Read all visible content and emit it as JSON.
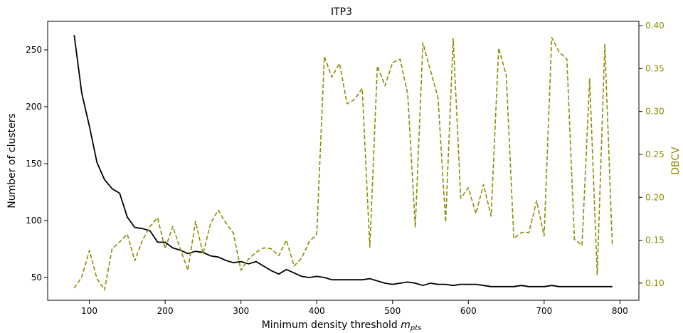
{
  "chart_data": {
    "type": "line",
    "title": "ITP3",
    "xlabel_main": "Minimum density threshold ",
    "xlabel_math": "m",
    "xlabel_sub": "pts",
    "ylabel_left": "Number of clusters",
    "ylabel_right": "DBCV",
    "xlim": [
      45,
      825
    ],
    "ylim_left": [
      30,
      275
    ],
    "ylim_right": [
      0.08,
      0.405
    ],
    "x_ticks": [
      100,
      200,
      300,
      400,
      500,
      600,
      700,
      800
    ],
    "y_left_ticks": [
      50,
      100,
      150,
      200,
      250
    ],
    "y_right_ticks": [
      0.1,
      0.15,
      0.2,
      0.25,
      0.3,
      0.35,
      0.4
    ],
    "y_right_tick_labels": [
      "0.10",
      "0.15",
      "0.20",
      "0.25",
      "0.30",
      "0.35",
      "0.40"
    ],
    "grid": false,
    "colors": {
      "clusters": "#000000",
      "dbcv": "#8c8c00",
      "axes": "#000000"
    },
    "series": [
      {
        "axis": "left",
        "style": "solid",
        "x": [
          80,
          90,
          100,
          110,
          120,
          130,
          140,
          150,
          160,
          170,
          180,
          190,
          200,
          210,
          220,
          230,
          240,
          250,
          260,
          270,
          280,
          290,
          300,
          310,
          320,
          330,
          340,
          350,
          360,
          370,
          380,
          390,
          400,
          410,
          420,
          430,
          440,
          450,
          460,
          470,
          480,
          490,
          500,
          510,
          520,
          530,
          540,
          550,
          560,
          570,
          580,
          590,
          600,
          610,
          620,
          630,
          640,
          650,
          660,
          670,
          680,
          690,
          700,
          710,
          720,
          730,
          740,
          750,
          760,
          770,
          780,
          790
        ],
        "values": [
          263,
          212,
          183,
          151,
          136,
          128,
          124,
          103,
          94,
          93,
          91,
          81,
          81,
          76,
          74,
          71,
          73,
          72,
          69,
          68,
          65,
          63,
          64,
          62,
          64,
          60,
          56,
          53,
          57,
          54,
          51,
          50,
          51,
          50,
          48,
          48,
          48,
          48,
          48,
          49,
          47,
          45,
          44,
          45,
          46,
          45,
          43,
          45,
          44,
          44,
          43,
          44,
          44,
          44,
          43,
          42,
          42,
          42,
          42,
          43,
          42,
          42,
          42,
          43,
          42,
          42,
          42,
          42,
          42,
          42,
          42,
          42
        ]
      },
      {
        "axis": "right",
        "style": "dashed",
        "x": [
          80,
          90,
          100,
          110,
          120,
          130,
          140,
          150,
          160,
          170,
          180,
          190,
          200,
          210,
          220,
          230,
          240,
          250,
          260,
          270,
          280,
          290,
          300,
          310,
          320,
          330,
          340,
          350,
          360,
          370,
          380,
          390,
          400,
          410,
          420,
          430,
          440,
          450,
          460,
          470,
          480,
          490,
          500,
          510,
          520,
          530,
          540,
          550,
          560,
          570,
          580,
          590,
          600,
          610,
          620,
          630,
          640,
          650,
          660,
          670,
          680,
          690,
          700,
          710,
          720,
          730,
          740,
          750,
          760,
          770,
          780,
          790
        ],
        "values": [
          0.094,
          0.107,
          0.138,
          0.105,
          0.092,
          0.14,
          0.148,
          0.157,
          0.126,
          0.15,
          0.166,
          0.176,
          0.14,
          0.166,
          0.14,
          0.115,
          0.172,
          0.134,
          0.17,
          0.185,
          0.17,
          0.158,
          0.115,
          0.128,
          0.136,
          0.141,
          0.14,
          0.132,
          0.15,
          0.12,
          0.129,
          0.148,
          0.157,
          0.364,
          0.34,
          0.356,
          0.309,
          0.314,
          0.327,
          0.142,
          0.353,
          0.33,
          0.357,
          0.361,
          0.32,
          0.165,
          0.38,
          0.348,
          0.316,
          0.171,
          0.385,
          0.199,
          0.211,
          0.181,
          0.215,
          0.178,
          0.374,
          0.342,
          0.152,
          0.159,
          0.159,
          0.196,
          0.155,
          0.386,
          0.369,
          0.361,
          0.151,
          0.144,
          0.338,
          0.11,
          0.378,
          0.143
        ]
      }
    ]
  }
}
